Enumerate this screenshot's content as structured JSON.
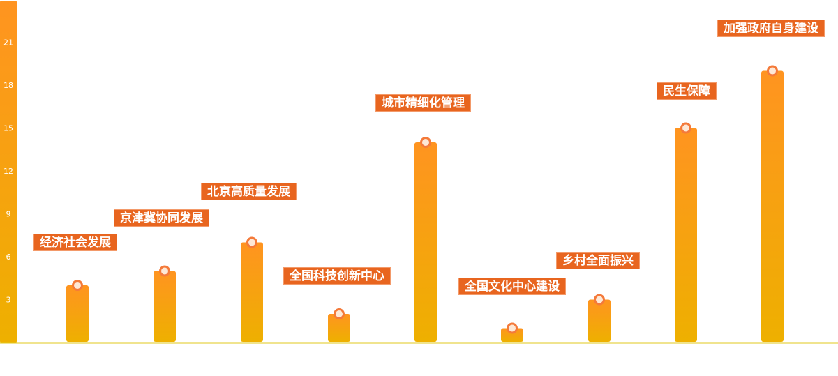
{
  "chart_data": {
    "type": "bar",
    "categories": [
      "经济社会发展",
      "京津冀协同发展",
      "北京高质量发展",
      "全国科技创新中心",
      "城市精细化管理",
      "全国文化中心建设",
      "乡村全面振兴",
      "民生保障",
      "加强政府自身建设"
    ],
    "values": [
      4,
      5,
      7,
      2,
      14,
      1,
      3,
      15,
      19
    ],
    "yticks": [
      3,
      6,
      9,
      12,
      15,
      18,
      21
    ],
    "ylim": [
      0,
      24
    ],
    "grid": false,
    "legend": "none",
    "colors": {
      "bar_top": "#ff9420",
      "bar_bottom": "#eeb000",
      "label_bg": "#e8651f",
      "marker": "#f47a3a",
      "baseline": "#e2c81c"
    }
  }
}
